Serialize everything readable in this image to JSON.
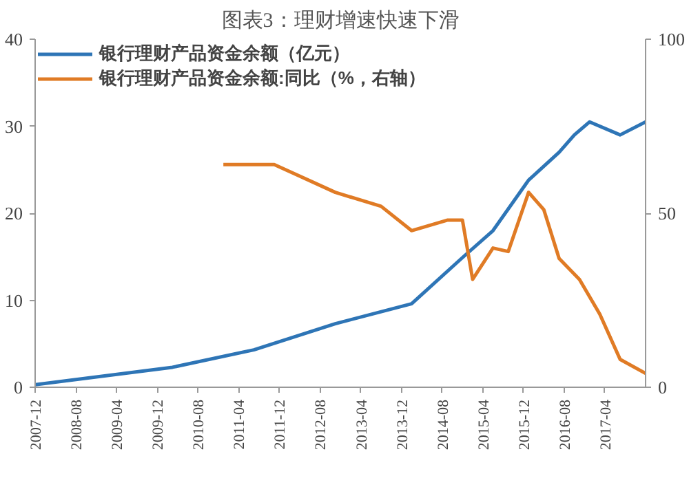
{
  "chart_data": {
    "type": "line",
    "title": "图表3：理财增速快速下滑",
    "xlim": [
      "2007-12",
      "2017-12"
    ],
    "xticks": [
      "2007-12",
      "2008-08",
      "2009-04",
      "2009-12",
      "2010-08",
      "2011-04",
      "2011-12",
      "2012-08",
      "2013-04",
      "2013-12",
      "2014-08",
      "2015-04",
      "2015-12",
      "2016-08",
      "2017-04"
    ],
    "ylim": [
      0,
      40
    ],
    "yticks": [
      0,
      10,
      20,
      30,
      40
    ],
    "y2lim": [
      0,
      100
    ],
    "y2ticks": [
      0,
      50,
      100
    ],
    "grid": false,
    "legend": "top",
    "series": [
      {
        "name": "银行理财产品资金余额（亿元）",
        "color": "#2e75b6",
        "x": [
          "2007-12",
          "2010-03",
          "2011-07",
          "2012-11",
          "2014-02",
          "2014-12",
          "2015-06",
          "2016-01",
          "2016-07",
          "2016-10",
          "2017-01",
          "2017-07",
          "2017-12"
        ],
        "values": [
          0.3,
          2.3,
          4.3,
          7.3,
          9.6,
          14.9,
          18,
          23.8,
          27,
          29,
          30.5,
          29,
          30.5
        ]
      },
      {
        "name": "银行理财产品资金余额:同比（%，右轴）",
        "color": "#e07b25",
        "axis": "y2",
        "x": [
          "2011-01",
          "2011-11",
          "2012-11",
          "2013-08",
          "2014-02",
          "2014-09",
          "2014-12",
          "2015-02",
          "2015-06",
          "2015-09",
          "2016-01",
          "2016-04",
          "2016-07",
          "2016-11",
          "2017-03",
          "2017-07",
          "2017-12"
        ],
        "values": [
          64,
          64,
          56,
          52,
          45,
          48,
          48,
          31,
          40,
          39,
          56,
          51,
          37,
          31,
          21,
          8,
          4
        ]
      }
    ]
  }
}
